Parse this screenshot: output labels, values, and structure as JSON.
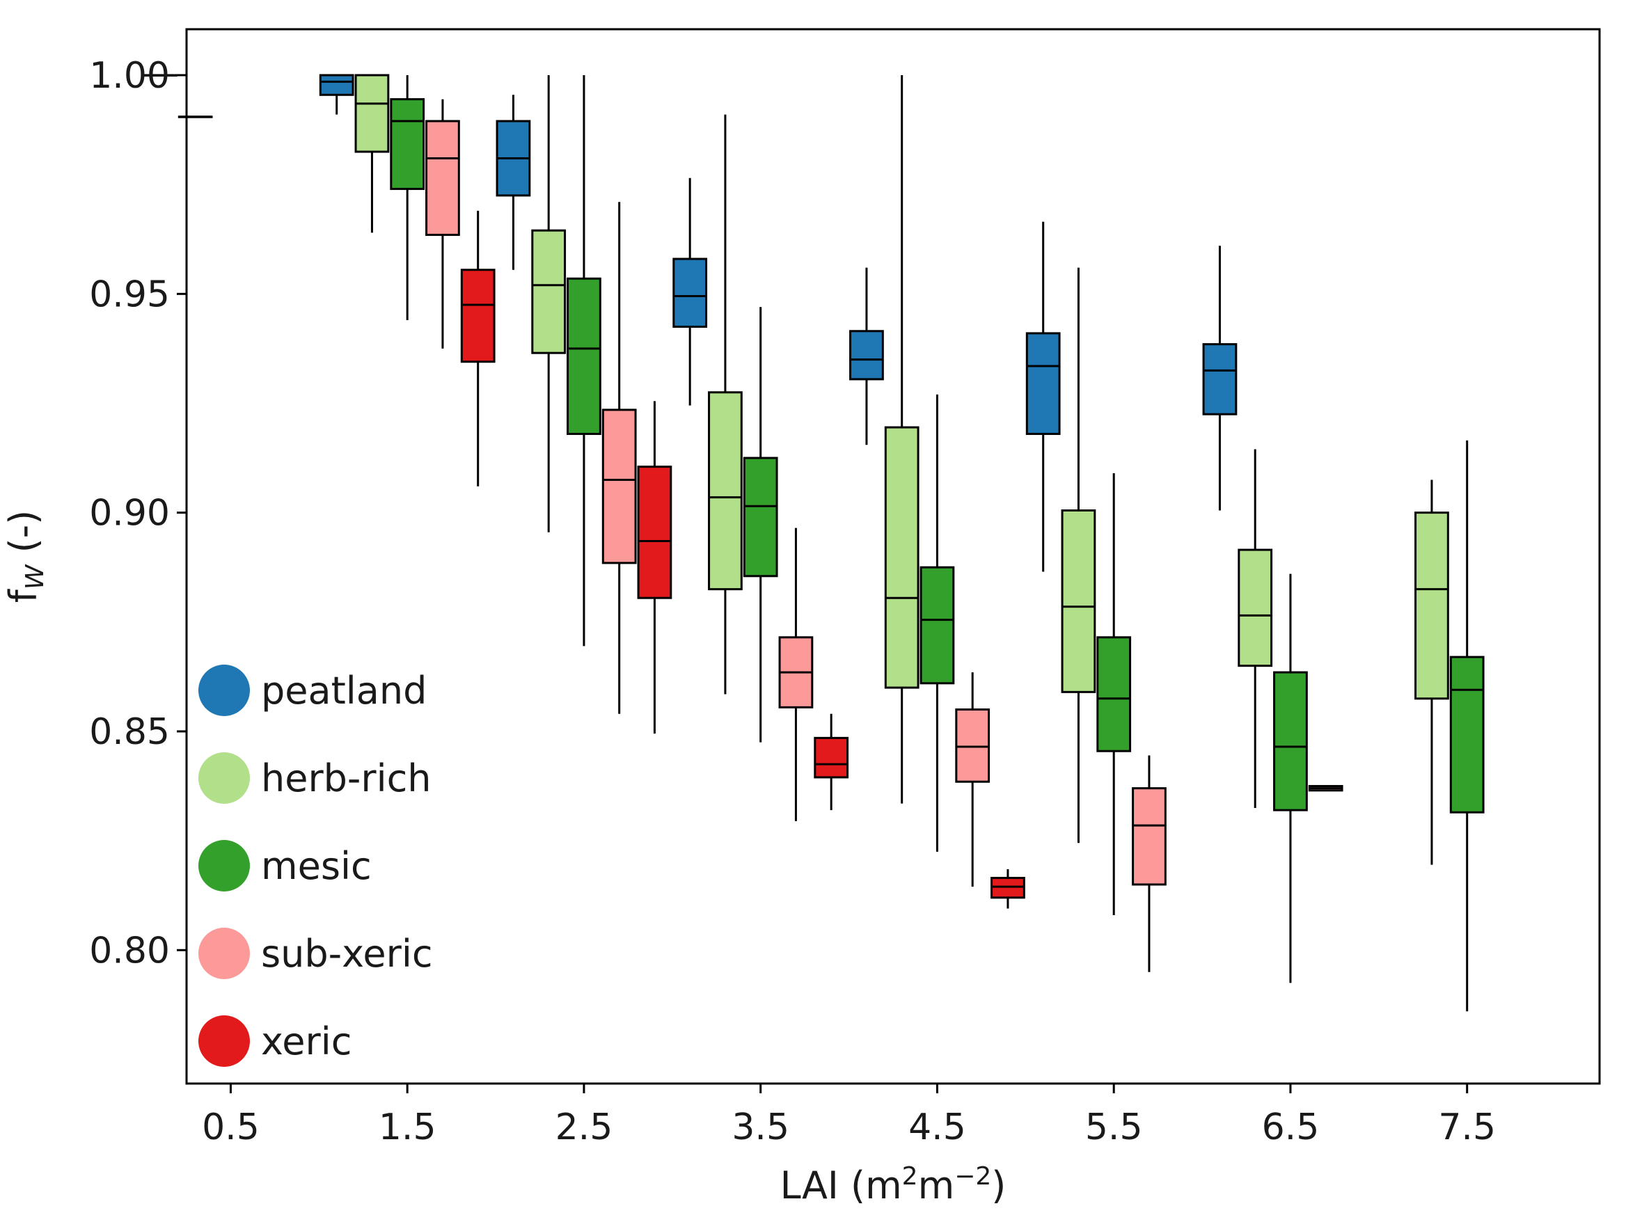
{
  "chart_data": {
    "type": "box",
    "xlabel": {
      "base": "LAI (m",
      "sup1": "2",
      "mid": "m",
      "sup2": "−2",
      "end": ")"
    },
    "ylabel": {
      "base": "f",
      "sub": "W",
      "end": " (-)"
    },
    "xlim": [
      0.25,
      8.25
    ],
    "ylim": [
      0.7695,
      1.0105
    ],
    "xticks": [
      0.5,
      1.5,
      2.5,
      3.5,
      4.5,
      5.5,
      6.5,
      7.5
    ],
    "xtick_labels": [
      "0.5",
      "1.5",
      "2.5",
      "3.5",
      "4.5",
      "5.5",
      "6.5",
      "7.5"
    ],
    "yticks": [
      0.8,
      0.85,
      0.9,
      0.95,
      1.0
    ],
    "ytick_labels": [
      "0.80",
      "0.85",
      "0.90",
      "0.95",
      "1.00"
    ],
    "box_width": 0.2,
    "legend_position": "lower-left",
    "series": [
      {
        "name": "peatland",
        "color": "#1f77b4",
        "boxes": [
          {
            "x": 0.5,
            "whislo": 1.0,
            "q1": 1.0,
            "med": 1.0,
            "q3": 1.0,
            "whishi": 1.0
          },
          {
            "x": 1.5,
            "whislo": 0.991,
            "q1": 0.9955,
            "med": 0.9985,
            "q3": 1.0,
            "whishi": 1.0
          },
          {
            "x": 2.5,
            "whislo": 0.9555,
            "q1": 0.9725,
            "med": 0.981,
            "q3": 0.9895,
            "whishi": 0.9955
          },
          {
            "x": 3.5,
            "whislo": 0.9245,
            "q1": 0.9425,
            "med": 0.9495,
            "q3": 0.958,
            "whishi": 0.9765
          },
          {
            "x": 4.5,
            "whislo": 0.9155,
            "q1": 0.9305,
            "med": 0.935,
            "q3": 0.9415,
            "whishi": 0.956
          },
          {
            "x": 5.5,
            "whislo": 0.8865,
            "q1": 0.918,
            "med": 0.9335,
            "q3": 0.941,
            "whishi": 0.9665
          },
          {
            "x": 6.5,
            "whislo": 0.9005,
            "q1": 0.9225,
            "med": 0.9325,
            "q3": 0.9385,
            "whishi": 0.961
          }
        ]
      },
      {
        "name": "herb-rich",
        "color": "#b2df8a",
        "boxes": [
          {
            "x": 0.5,
            "whislo": 0.9905,
            "q1": 0.9905,
            "med": 0.9905,
            "q3": 0.9905,
            "whishi": 0.9905
          },
          {
            "x": 1.5,
            "whislo": 0.964,
            "q1": 0.9825,
            "med": 0.9935,
            "q3": 1.0,
            "whishi": 1.0
          },
          {
            "x": 2.5,
            "whislo": 0.8955,
            "q1": 0.9365,
            "med": 0.952,
            "q3": 0.9645,
            "whishi": 1.0
          },
          {
            "x": 3.5,
            "whislo": 0.8585,
            "q1": 0.8825,
            "med": 0.9035,
            "q3": 0.9275,
            "whishi": 0.991
          },
          {
            "x": 4.5,
            "whislo": 0.8335,
            "q1": 0.86,
            "med": 0.8805,
            "q3": 0.9195,
            "whishi": 1.0
          },
          {
            "x": 5.5,
            "whislo": 0.8245,
            "q1": 0.859,
            "med": 0.8785,
            "q3": 0.9005,
            "whishi": 0.956
          },
          {
            "x": 6.5,
            "whislo": 0.8325,
            "q1": 0.865,
            "med": 0.8765,
            "q3": 0.8915,
            "whishi": 0.9145
          },
          {
            "x": 7.5,
            "whislo": 0.8195,
            "q1": 0.8575,
            "med": 0.8825,
            "q3": 0.9,
            "whishi": 0.9075
          }
        ]
      },
      {
        "name": "mesic",
        "color": "#33a02c",
        "boxes": [
          {
            "x": 1.5,
            "whislo": 0.944,
            "q1": 0.974,
            "med": 0.9895,
            "q3": 0.9945,
            "whishi": 1.0
          },
          {
            "x": 2.5,
            "whislo": 0.8695,
            "q1": 0.918,
            "med": 0.9375,
            "q3": 0.9535,
            "whishi": 1.0
          },
          {
            "x": 3.5,
            "whislo": 0.8475,
            "q1": 0.8855,
            "med": 0.9015,
            "q3": 0.9125,
            "whishi": 0.947
          },
          {
            "x": 4.5,
            "whislo": 0.8225,
            "q1": 0.861,
            "med": 0.8755,
            "q3": 0.8875,
            "whishi": 0.927
          },
          {
            "x": 5.5,
            "whislo": 0.808,
            "q1": 0.8455,
            "med": 0.8575,
            "q3": 0.8715,
            "whishi": 0.909
          },
          {
            "x": 6.5,
            "whislo": 0.7925,
            "q1": 0.832,
            "med": 0.8465,
            "q3": 0.8635,
            "whishi": 0.886
          },
          {
            "x": 7.5,
            "whislo": 0.786,
            "q1": 0.8315,
            "med": 0.8595,
            "q3": 0.867,
            "whishi": 0.9165
          }
        ]
      },
      {
        "name": "sub-xeric",
        "color": "#fb9a99",
        "boxes": [
          {
            "x": 1.5,
            "whislo": 0.9375,
            "q1": 0.9635,
            "med": 0.981,
            "q3": 0.9895,
            "whishi": 0.9945
          },
          {
            "x": 2.5,
            "whislo": 0.854,
            "q1": 0.8885,
            "med": 0.9075,
            "q3": 0.9235,
            "whishi": 0.971
          },
          {
            "x": 3.5,
            "whislo": 0.8295,
            "q1": 0.8555,
            "med": 0.8635,
            "q3": 0.8715,
            "whishi": 0.8965
          },
          {
            "x": 4.5,
            "whislo": 0.8145,
            "q1": 0.8385,
            "med": 0.8465,
            "q3": 0.855,
            "whishi": 0.8635
          },
          {
            "x": 5.5,
            "whislo": 0.795,
            "q1": 0.815,
            "med": 0.8285,
            "q3": 0.837,
            "whishi": 0.8445
          },
          {
            "x": 6.5,
            "whislo": 0.8365,
            "q1": 0.8365,
            "med": 0.837,
            "q3": 0.8375,
            "whishi": 0.8375
          }
        ]
      },
      {
        "name": "xeric",
        "color": "#e31a1c",
        "boxes": [
          {
            "x": 1.5,
            "whislo": 0.906,
            "q1": 0.9345,
            "med": 0.9475,
            "q3": 0.9555,
            "whishi": 0.969
          },
          {
            "x": 2.5,
            "whislo": 0.8495,
            "q1": 0.8805,
            "med": 0.8935,
            "q3": 0.9105,
            "whishi": 0.9255
          },
          {
            "x": 3.5,
            "whislo": 0.832,
            "q1": 0.8395,
            "med": 0.8425,
            "q3": 0.8485,
            "whishi": 0.854
          },
          {
            "x": 4.5,
            "whislo": 0.8095,
            "q1": 0.812,
            "med": 0.8145,
            "q3": 0.8165,
            "whishi": 0.8185
          }
        ]
      }
    ]
  }
}
